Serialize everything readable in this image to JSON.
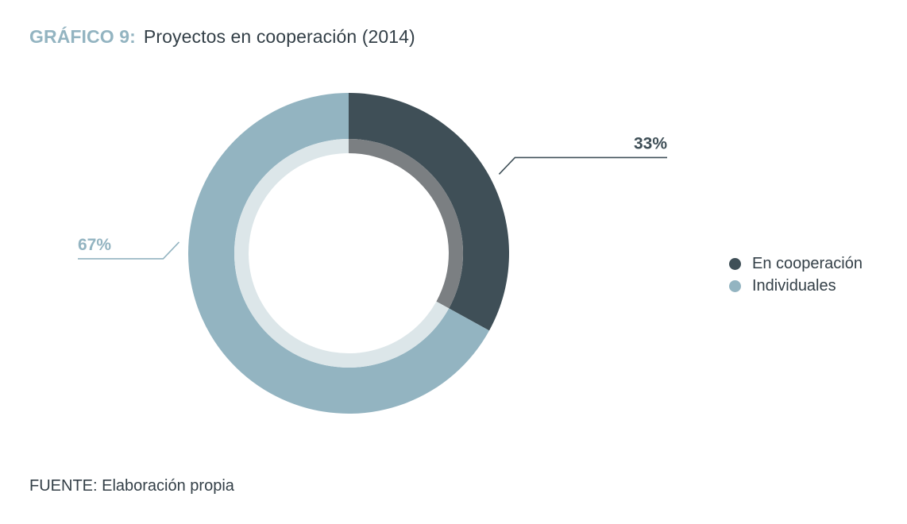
{
  "header": {
    "prefix": "GRÁFICO 9:",
    "title": "Proyectos en cooperación (2014)"
  },
  "chart_data": {
    "type": "pie",
    "style": "donut",
    "categories": [
      "En cooperación",
      "Individuales"
    ],
    "values": [
      33,
      67
    ],
    "labels": [
      "33%",
      "67%"
    ],
    "colors": [
      "#3f4f57",
      "#93b4c1"
    ],
    "inner_colors": [
      "#7b7f82",
      "#dce6e9"
    ],
    "legend_position": "right"
  },
  "footer": {
    "source": "FUENTE: Elaboración propia"
  }
}
